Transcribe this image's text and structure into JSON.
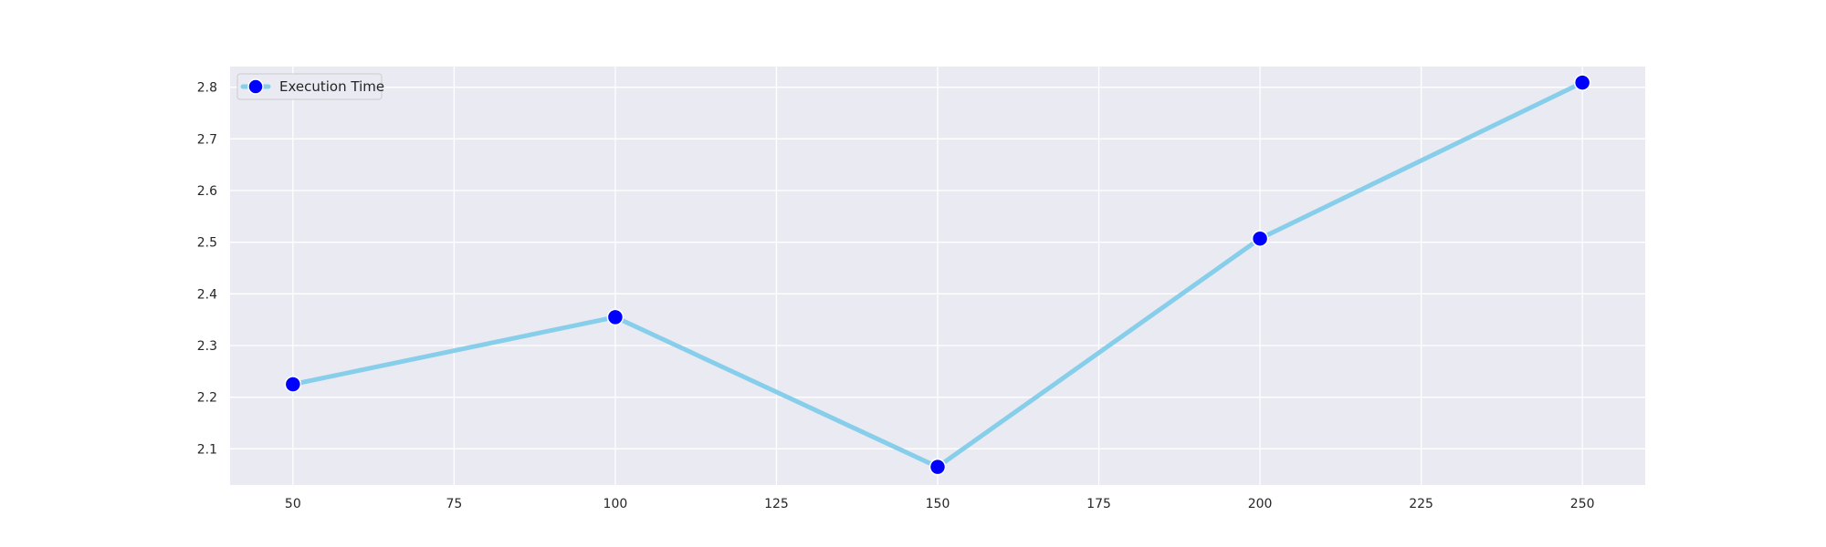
{
  "colors": {
    "plot_background": "#eaeaf2",
    "grid": "#ffffff",
    "line": "#87ceeb",
    "marker": "#0000ff",
    "marker_edge": "#ffffff",
    "text": "#262626"
  },
  "chart_data": {
    "type": "line",
    "title": "",
    "xlabel": "",
    "ylabel": "",
    "x": [
      50,
      100,
      150,
      200,
      250
    ],
    "series": [
      {
        "name": "Execution Time",
        "values": [
          2.225,
          2.355,
          2.065,
          2.507,
          2.809
        ]
      }
    ],
    "xlim": [
      40.25,
      259.75
    ],
    "ylim": [
      2.03,
      2.84
    ],
    "xticks": [
      50,
      75,
      100,
      125,
      150,
      175,
      200,
      225,
      250
    ],
    "yticks": [
      2.1,
      2.2,
      2.3,
      2.4,
      2.5,
      2.6,
      2.7,
      2.8
    ],
    "grid": true,
    "legend_position": "top-left"
  }
}
